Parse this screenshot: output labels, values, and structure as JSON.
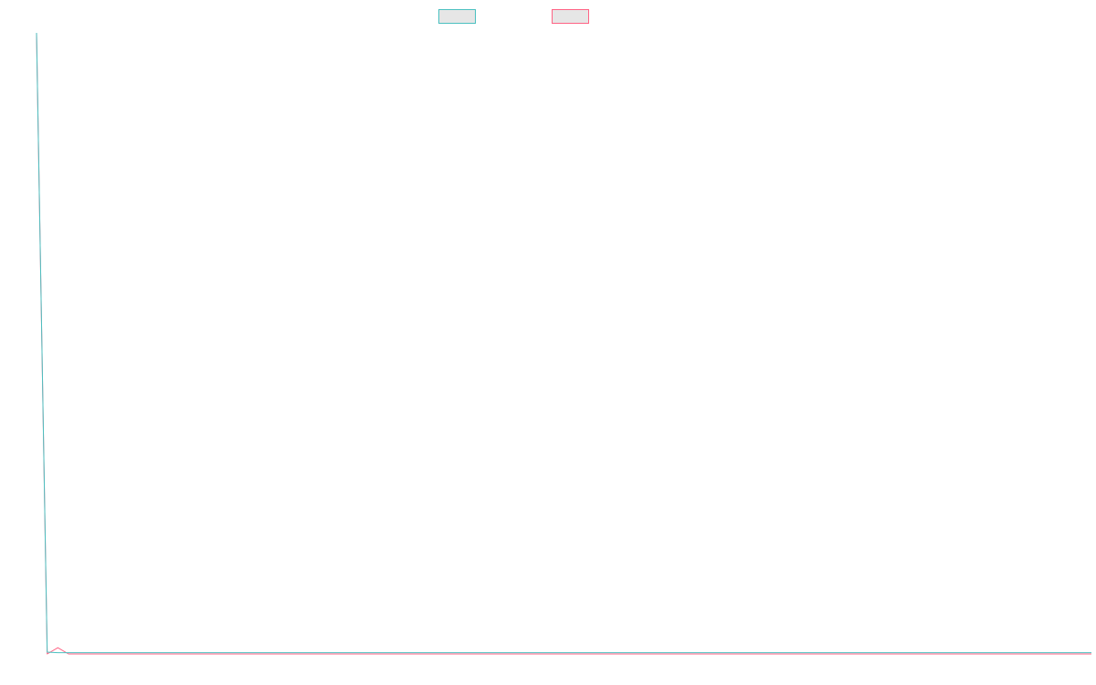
{
  "colors": {
    "series_a": "#4bc0c0",
    "series_b": "#ff6384",
    "legend_fill": "#e6e6e6",
    "background": "#ffffff"
  },
  "chart_data": {
    "type": "line",
    "title": "",
    "xlabel": "",
    "ylabel": "",
    "grid": false,
    "legend_position": "top-center",
    "xlim": [
      0,
      99
    ],
    "ylim": [
      0,
      100
    ],
    "series": [
      {
        "color_key": "series_a",
        "x": [
          0,
          1,
          2,
          3,
          99
        ],
        "y": [
          100,
          0.3,
          0.2,
          0.2,
          0.2
        ]
      },
      {
        "color_key": "series_b",
        "x": [
          0,
          1,
          2,
          3,
          4,
          99
        ],
        "y": [
          100,
          0,
          1,
          0,
          0,
          0
        ]
      }
    ]
  }
}
